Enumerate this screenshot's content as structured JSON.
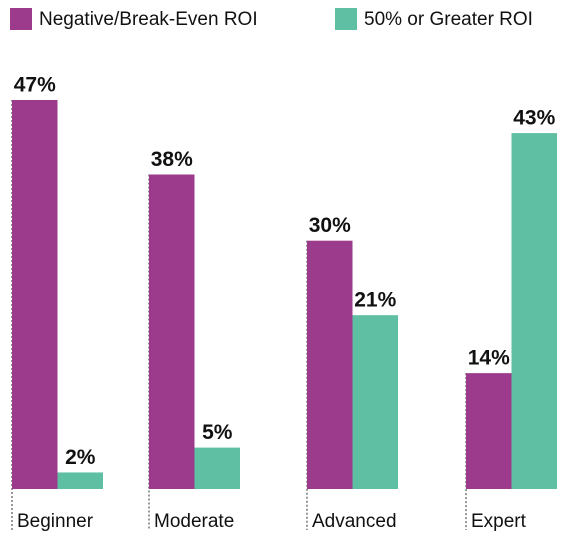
{
  "chart_data": {
    "type": "bar",
    "categories": [
      "Beginner",
      "Moderate",
      "Advanced",
      "Expert"
    ],
    "series": [
      {
        "name": "Negative/Break-Even ROI",
        "color": "#9c3b8c",
        "values": [
          47,
          38,
          30,
          14
        ],
        "value_labels": [
          "47%",
          "38%",
          "30%",
          "14%"
        ]
      },
      {
        "name": "50% or Greater ROI",
        "color": "#5fbfa3",
        "values": [
          2,
          5,
          21,
          43
        ],
        "value_labels": [
          "2%",
          "5%",
          "21%",
          "43%"
        ]
      }
    ]
  }
}
